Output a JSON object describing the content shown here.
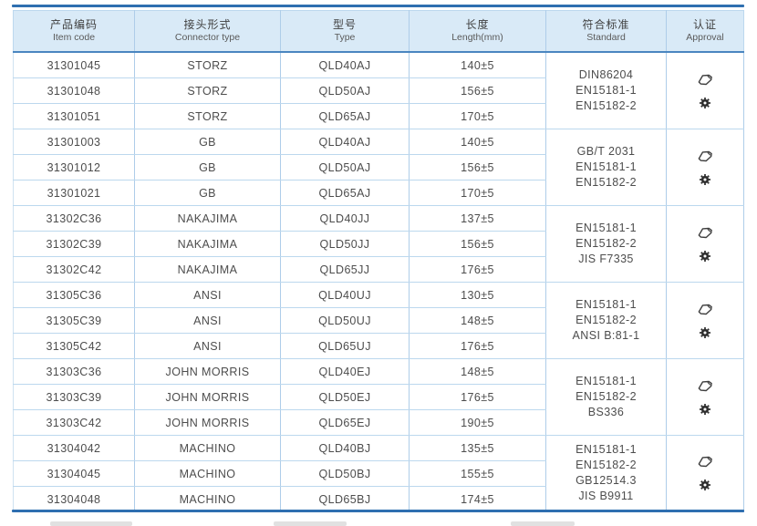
{
  "colors": {
    "rule_blue": "#2f6fb0",
    "header_fill": "#d9eaf7",
    "header_border": "#4a86c0",
    "grid_line": "#aecde9",
    "row_line": "#bcd8ee",
    "text": "#4d4d4d"
  },
  "header": {
    "cols": [
      {
        "cn": "产品编码",
        "en": "Item code"
      },
      {
        "cn": "接头形式",
        "en": "Connector type"
      },
      {
        "cn": "型号",
        "en": "Type"
      },
      {
        "cn": "长度",
        "en": "Length(mm)"
      },
      {
        "cn": "符合标准",
        "en": "Standard"
      },
      {
        "cn": "认证",
        "en": "Approval"
      }
    ]
  },
  "icons": {
    "stamp": "certificate-stamp-icon",
    "seal": "gear-seal-icon"
  },
  "table": {
    "groups": [
      {
        "rows": [
          {
            "code": "31301045",
            "connector": "STORZ",
            "type": "QLD40AJ",
            "length": "140±5"
          },
          {
            "code": "31301048",
            "connector": "STORZ",
            "type": "QLD50AJ",
            "length": "156±5"
          },
          {
            "code": "31301051",
            "connector": "STORZ",
            "type": "QLD65AJ",
            "length": "170±5"
          }
        ],
        "standards": [
          "DIN86204",
          "EN15181-1",
          "EN15182-2"
        ]
      },
      {
        "rows": [
          {
            "code": "31301003",
            "connector": "GB",
            "type": "QLD40AJ",
            "length": "140±5"
          },
          {
            "code": "31301012",
            "connector": "GB",
            "type": "QLD50AJ",
            "length": "156±5"
          },
          {
            "code": "31301021",
            "connector": "GB",
            "type": "QLD65AJ",
            "length": "170±5"
          }
        ],
        "standards": [
          "GB/T 2031",
          "EN15181-1",
          "EN15182-2"
        ]
      },
      {
        "rows": [
          {
            "code": "31302C36",
            "connector": "NAKAJIMA",
            "type": "QLD40JJ",
            "length": "137±5"
          },
          {
            "code": "31302C39",
            "connector": "NAKAJIMA",
            "type": "QLD50JJ",
            "length": "156±5"
          },
          {
            "code": "31302C42",
            "connector": "NAKAJIMA",
            "type": "QLD65JJ",
            "length": "176±5"
          }
        ],
        "standards": [
          "EN15181-1",
          "EN15182-2",
          "JIS F7335"
        ]
      },
      {
        "rows": [
          {
            "code": "31305C36",
            "connector": "ANSI",
            "type": "QLD40UJ",
            "length": "130±5"
          },
          {
            "code": "31305C39",
            "connector": "ANSI",
            "type": "QLD50UJ",
            "length": "148±5"
          },
          {
            "code": "31305C42",
            "connector": "ANSI",
            "type": "QLD65UJ",
            "length": "176±5"
          }
        ],
        "standards": [
          "EN15181-1",
          "EN15182-2",
          "ANSI B:81-1"
        ]
      },
      {
        "rows": [
          {
            "code": "31303C36",
            "connector": "JOHN MORRIS",
            "type": "QLD40EJ",
            "length": "148±5"
          },
          {
            "code": "31303C39",
            "connector": "JOHN MORRIS",
            "type": "QLD50EJ",
            "length": "176±5"
          },
          {
            "code": "31303C42",
            "connector": "JOHN MORRIS",
            "type": "QLD65EJ",
            "length": "190±5"
          }
        ],
        "standards": [
          "EN15181-1",
          "EN15182-2",
          "BS336"
        ]
      },
      {
        "rows": [
          {
            "code": "31304042",
            "connector": "MACHINO",
            "type": "QLD40BJ",
            "length": "135±5"
          },
          {
            "code": "31304045",
            "connector": "MACHINO",
            "type": "QLD50BJ",
            "length": "155±5"
          },
          {
            "code": "31304048",
            "connector": "MACHINO",
            "type": "QLD65BJ",
            "length": "174±5"
          }
        ],
        "standards": [
          "EN15181-1",
          "EN15182-2",
          "GB12514.3",
          "JIS B9911"
        ]
      }
    ]
  }
}
